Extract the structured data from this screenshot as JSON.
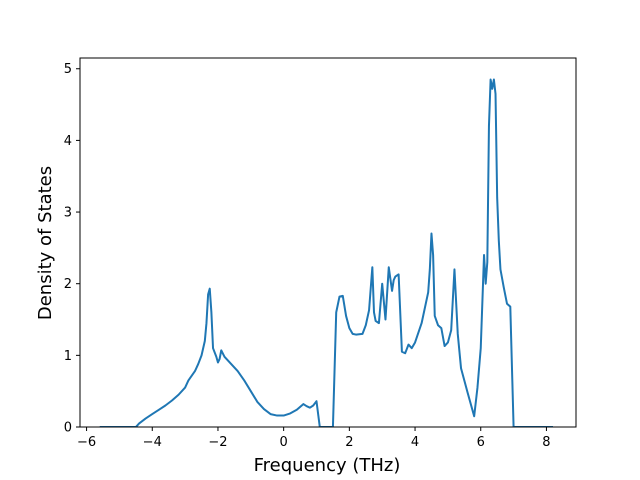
{
  "chart_data": {
    "type": "line",
    "title": "",
    "xlabel": "Frequency (THz)",
    "ylabel": "Density of States",
    "xlim": [
      -6.2,
      8.9
    ],
    "ylim": [
      0,
      5.15
    ],
    "xticks": [
      -6,
      -4,
      -2,
      0,
      2,
      4,
      6,
      8
    ],
    "xtick_labels": [
      "−6",
      "−4",
      "−2",
      "0",
      "2",
      "4",
      "6",
      "8"
    ],
    "yticks": [
      0,
      1,
      2,
      3,
      4,
      5
    ],
    "ytick_labels": [
      "0",
      "1",
      "2",
      "3",
      "4",
      "5"
    ],
    "grid": false,
    "series": [
      {
        "color": "#1f77b4",
        "x": [
          -5.6,
          -4.5,
          -4.4,
          -4.2,
          -4.0,
          -3.8,
          -3.6,
          -3.4,
          -3.2,
          -3.0,
          -2.9,
          -2.7,
          -2.6,
          -2.5,
          -2.4,
          -2.35,
          -2.3,
          -2.25,
          -2.2,
          -2.15,
          -2.05,
          -2.0,
          -1.95,
          -1.9,
          -1.8,
          -1.6,
          -1.4,
          -1.2,
          -1.0,
          -0.8,
          -0.6,
          -0.4,
          -0.2,
          0.0,
          0.2,
          0.4,
          0.6,
          0.7,
          0.8,
          0.9,
          1.0,
          1.1,
          1.2,
          1.3,
          1.5,
          1.6,
          1.7,
          1.8,
          1.9,
          2.0,
          2.1,
          2.2,
          2.4,
          2.5,
          2.6,
          2.7,
          2.75,
          2.8,
          2.9,
          3.0,
          3.1,
          3.2,
          3.3,
          3.35,
          3.4,
          3.5,
          3.6,
          3.7,
          3.8,
          3.9,
          4.0,
          4.2,
          4.4,
          4.45,
          4.5,
          4.55,
          4.6,
          4.7,
          4.8,
          4.9,
          5.0,
          5.1,
          5.2,
          5.3,
          5.4,
          5.6,
          5.8,
          5.9,
          6.0,
          6.1,
          6.15,
          6.2,
          6.25,
          6.3,
          6.35,
          6.4,
          6.45,
          6.5,
          6.55,
          6.6,
          6.7,
          6.8,
          6.9,
          7.0,
          7.05,
          7.1,
          8.2
        ],
        "values": [
          0,
          0,
          0.05,
          0.12,
          0.18,
          0.24,
          0.3,
          0.37,
          0.45,
          0.55,
          0.65,
          0.78,
          0.88,
          1.0,
          1.2,
          1.45,
          1.85,
          1.93,
          1.6,
          1.1,
          0.98,
          0.9,
          0.95,
          1.07,
          0.98,
          0.88,
          0.78,
          0.65,
          0.5,
          0.35,
          0.25,
          0.18,
          0.16,
          0.16,
          0.19,
          0.24,
          0.32,
          0.29,
          0.27,
          0.3,
          0.36,
          0.0,
          0.0,
          0.0,
          0.0,
          1.6,
          1.82,
          1.83,
          1.55,
          1.38,
          1.3,
          1.29,
          1.3,
          1.42,
          1.63,
          2.23,
          1.6,
          1.48,
          1.45,
          2.0,
          1.5,
          2.23,
          1.9,
          2.05,
          2.1,
          2.13,
          1.05,
          1.03,
          1.15,
          1.1,
          1.18,
          1.45,
          1.88,
          2.2,
          2.7,
          2.4,
          1.55,
          1.42,
          1.38,
          1.13,
          1.18,
          1.35,
          2.2,
          1.3,
          0.82,
          0.48,
          0.15,
          0.55,
          1.1,
          2.4,
          2.0,
          2.3,
          4.2,
          4.85,
          4.72,
          4.85,
          4.65,
          3.2,
          2.6,
          2.2,
          1.95,
          1.72,
          1.68,
          0.0,
          0.0,
          0.0,
          0.0
        ]
      }
    ]
  }
}
